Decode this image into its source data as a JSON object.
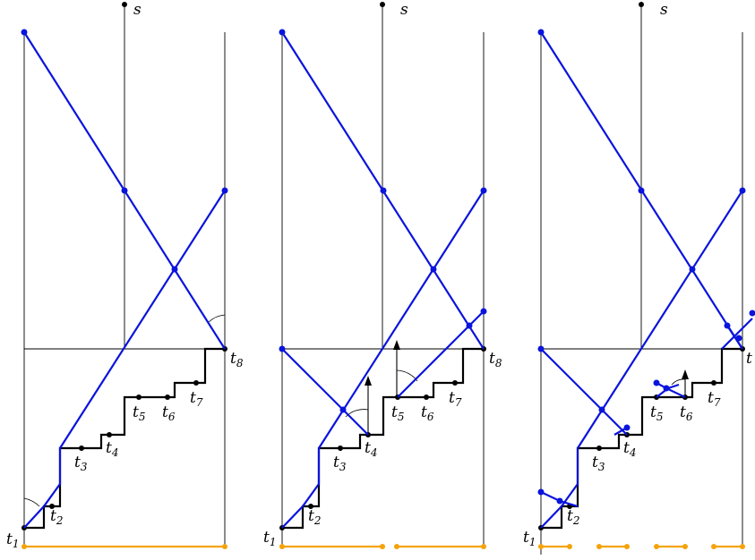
{
  "labels": {
    "s": "s",
    "t1": "t",
    "t1_sub": "1",
    "t2": "t",
    "t2_sub": "2",
    "t3": "t",
    "t3_sub": "3",
    "t4": "t",
    "t4_sub": "4",
    "t5": "t",
    "t5_sub": "5",
    "t6": "t",
    "t6_sub": "6",
    "t7": "t",
    "t7_sub": "7",
    "t8": "t",
    "t8_sub": "8"
  },
  "colors": {
    "axis": "#000000",
    "staircase": "#000000",
    "blue": "#0a14dc",
    "orange": "#f5a30a"
  }
}
